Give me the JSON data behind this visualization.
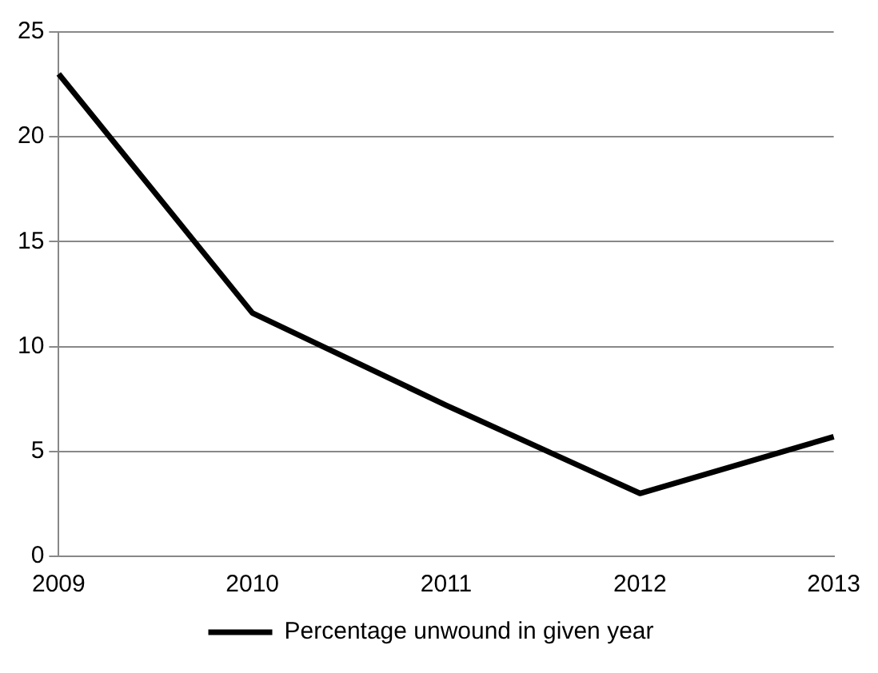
{
  "chart_data": {
    "type": "line",
    "categories": [
      "2009",
      "2010",
      "2011",
      "2012",
      "2013"
    ],
    "series": [
      {
        "name": "Percentage unwound in given year",
        "color": "#000000",
        "values": [
          23,
          11.6,
          7.2,
          3,
          5.7
        ]
      }
    ],
    "ylim": [
      0,
      25
    ],
    "yticks": [
      0,
      5,
      10,
      15,
      20,
      25
    ],
    "grid": "y",
    "legend": "bottom",
    "marker": "none",
    "line_style": "solid"
  }
}
